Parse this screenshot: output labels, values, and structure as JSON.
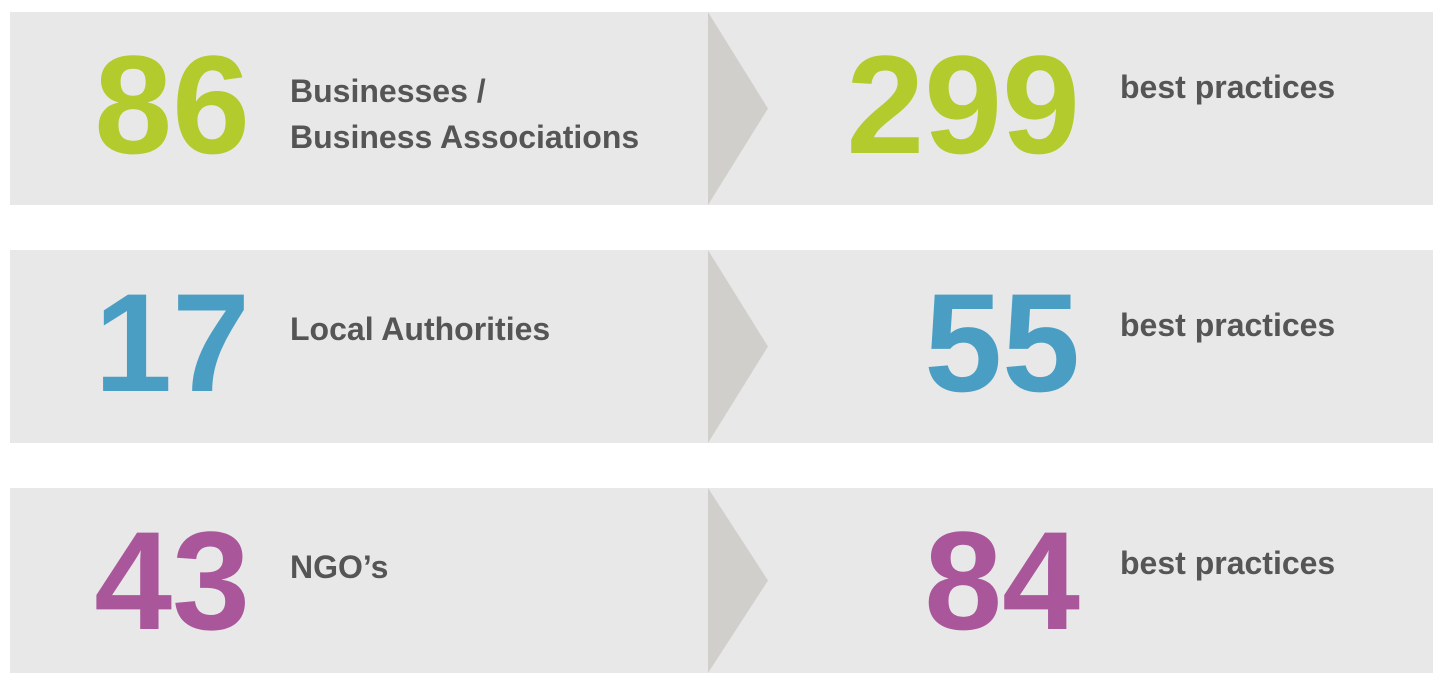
{
  "rows": [
    {
      "count": 86,
      "label": [
        "Businesses /",
        "Business Associations"
      ],
      "practices": 299,
      "practices_label": "best practices",
      "color": "#b3cb2d"
    },
    {
      "count": 17,
      "label": [
        "Local Authorities"
      ],
      "practices": 55,
      "practices_label": "best practices",
      "color": "#4a9ec3"
    },
    {
      "count": 43,
      "label": [
        "NGO’s"
      ],
      "practices": 84,
      "practices_label": "best practices",
      "color": "#a9569b"
    }
  ]
}
